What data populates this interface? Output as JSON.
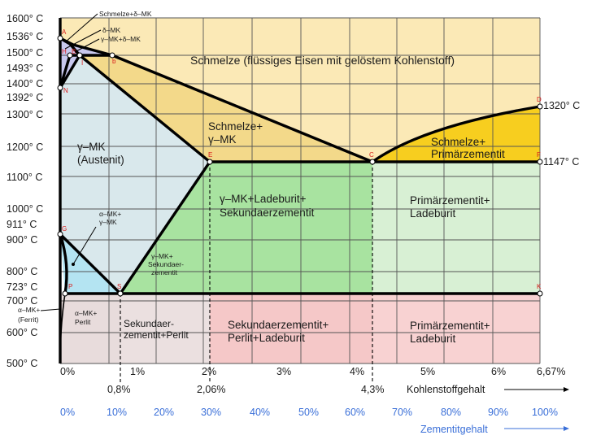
{
  "y_axis": {
    "ticks": [
      "1600° C",
      "1536° C",
      "1500° C",
      "1493° C",
      "1400° C",
      "1392° C",
      "1300° C",
      "1200° C",
      "1100° C",
      "1000° C",
      "911° C",
      "900° C",
      "800° C",
      "723° C",
      "700° C",
      "600° C",
      "500° C"
    ]
  },
  "x_axis": {
    "ticks": [
      "0%",
      "1%",
      "2%",
      "3%",
      "4%",
      "5%",
      "6%",
      "6,67%"
    ],
    "special_ticks": [
      "0,8%",
      "2,06%",
      "4,3%"
    ],
    "label": "Kohlenstoffgehalt"
  },
  "x_axis_2": {
    "ticks": [
      "0%",
      "10%",
      "20%",
      "30%",
      "40%",
      "50%",
      "60%",
      "70%",
      "80%",
      "90%",
      "100%"
    ],
    "label": "Zementitgehalt"
  },
  "right_labels": {
    "d": "1320° C",
    "f": "1147° C"
  },
  "points": {
    "A": "A",
    "B": "B",
    "H": "H",
    "I": "I",
    "b": "b",
    "N": "N",
    "G": "G",
    "P": "P",
    "S": "S",
    "E": "E",
    "C": "C",
    "D": "D",
    "F": "F",
    "K": "K"
  },
  "regions": {
    "schmelze": "Schmelze (flüssiges Eisen mit gelöstem Kohlenstoff)",
    "schmelze_gamma_1": "Schmelze+",
    "schmelze_gamma_2": "γ–MK",
    "schmelze_prim_1": "Schmelze+",
    "schmelze_prim_2": "Primärzementit",
    "austenit_1": "γ–MK",
    "austenit_2": "(Austenit)",
    "gamma_led_1": "γ–MK+Ladeburit+",
    "gamma_led_2": "Sekundaerzementit",
    "prim_led_upper_1": "Primärzementit+",
    "prim_led_upper_2": "Ladeburit",
    "alpha_gamma_1": "α–MK+",
    "alpha_gamma_2": "γ–MK",
    "gamma_sek_1": "γ–MK+",
    "gamma_sek_2": "Sekundaer-",
    "gamma_sek_3": "zementit",
    "alpha_ferrit_1": "α–MK+",
    "alpha_ferrit_2": "(Ferrit)",
    "alpha_perlit_1": "α–MK+",
    "alpha_perlit_2": "Perlit",
    "sek_perlit_1": "Sekundaer-",
    "sek_perlit_2": "zementit+Perlit",
    "sek_perlit_led_1": "Sekundaerzementit+",
    "sek_perlit_led_2": "Perlit+Ladeburit",
    "prim_led_lower_1": "Primärzementit+",
    "prim_led_lower_2": "Ladeburit",
    "top_schmelze_delta": "Schmelze+δ–MK",
    "top_delta": "δ–MK",
    "top_gamma_delta": "γ–MK+δ–MK"
  },
  "colors": {
    "melt": "#fbe9b6",
    "melt_gamma": "#f3d98a",
    "melt_prim": "#f7ce1f",
    "austenite": "#d9e8ec",
    "gamma_ledeburite": "#a8e3a0",
    "primary_ledeburite_upper": "#d8f0d4",
    "alpha_gamma": "#b4e4f2",
    "ferrite_perlite": "#e8dcdc",
    "lower_middle": "#f5c8c8",
    "lower_right": "#f8d2d2",
    "delta": "#c8c8ee",
    "axis_blue": "#3a6fd8"
  }
}
